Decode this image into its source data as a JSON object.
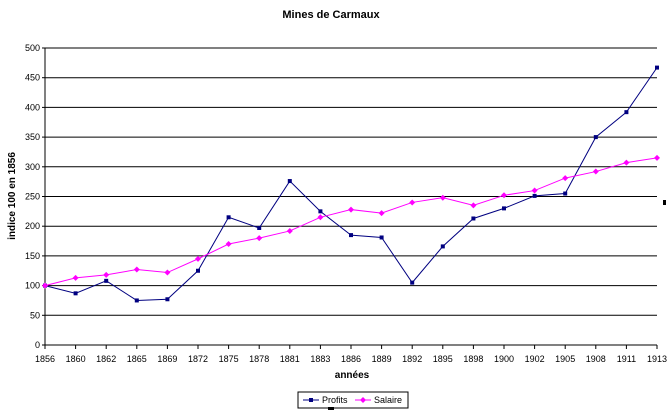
{
  "chart_data": {
    "type": "line",
    "title": "Mines de Carmaux",
    "xlabel": "années",
    "ylabel": "indice 100 en 1856",
    "categories": [
      "1856",
      "1860",
      "1862",
      "1865",
      "1869",
      "1872",
      "1875",
      "1878",
      "1881",
      "1883",
      "1886",
      "1889",
      "1892",
      "1895",
      "1898",
      "1900",
      "1902",
      "1905",
      "1908",
      "1911",
      "1913"
    ],
    "ylim": [
      0,
      500
    ],
    "yticks": [
      0,
      50,
      100,
      150,
      200,
      250,
      300,
      350,
      400,
      450,
      500
    ],
    "grid": "horizontal",
    "legend_position": "bottom",
    "series": [
      {
        "name": "Profits",
        "color": "#000080",
        "marker": "square",
        "values": [
          100,
          87,
          108,
          75,
          77,
          125,
          215,
          197,
          276,
          225,
          185,
          181,
          105,
          166,
          213,
          230,
          251,
          255,
          350,
          392,
          467
        ]
      },
      {
        "name": "Salaire",
        "color": "#ff00ff",
        "marker": "diamond",
        "values": [
          100,
          113,
          118,
          127,
          122,
          145,
          170,
          180,
          192,
          215,
          228,
          222,
          240,
          248,
          235,
          252,
          260,
          281,
          292,
          307,
          315
        ]
      }
    ]
  }
}
